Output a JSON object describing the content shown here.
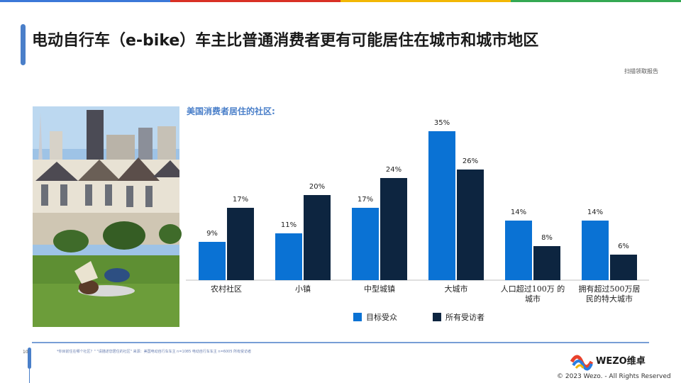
{
  "header": {
    "title": "电动自行车（e-bike）车主比普通消费者更有可能居住在城市和城市地区",
    "link": "扫描领取报告"
  },
  "chart_data": {
    "type": "bar",
    "title": "美国消费者居住的社区:",
    "categories": [
      "农村社区",
      "小镇",
      "中型城镇",
      "大城市",
      "人口超过100万 的城市",
      "拥有超过500万居 民的特大城市"
    ],
    "series": [
      {
        "name": "目标受众",
        "color": "#0a72d4",
        "values": [
          9,
          11,
          17,
          35,
          14,
          14
        ],
        "value_labels": [
          "9%",
          "11%",
          "17%",
          "35%",
          "14%",
          "14%"
        ]
      },
      {
        "name": "所有受访者",
        "color": "#0d2540",
        "values": [
          17,
          20,
          24,
          26,
          8,
          6
        ],
        "value_labels": [
          "17%",
          "20%",
          "24%",
          "26%",
          "8%",
          "6%"
        ]
      }
    ]
  },
  "footer": {
    "note": "*你目前住在哪个社区？\" \"请描述您居住的社区\" 来源：美国电动自行车车主 n=1085 电动自行车车主 n=6005 所有受访者",
    "page": "10",
    "logo": "WEZO维卓",
    "copyright": "© 2023 Wezo. - All Rights Reserved"
  }
}
